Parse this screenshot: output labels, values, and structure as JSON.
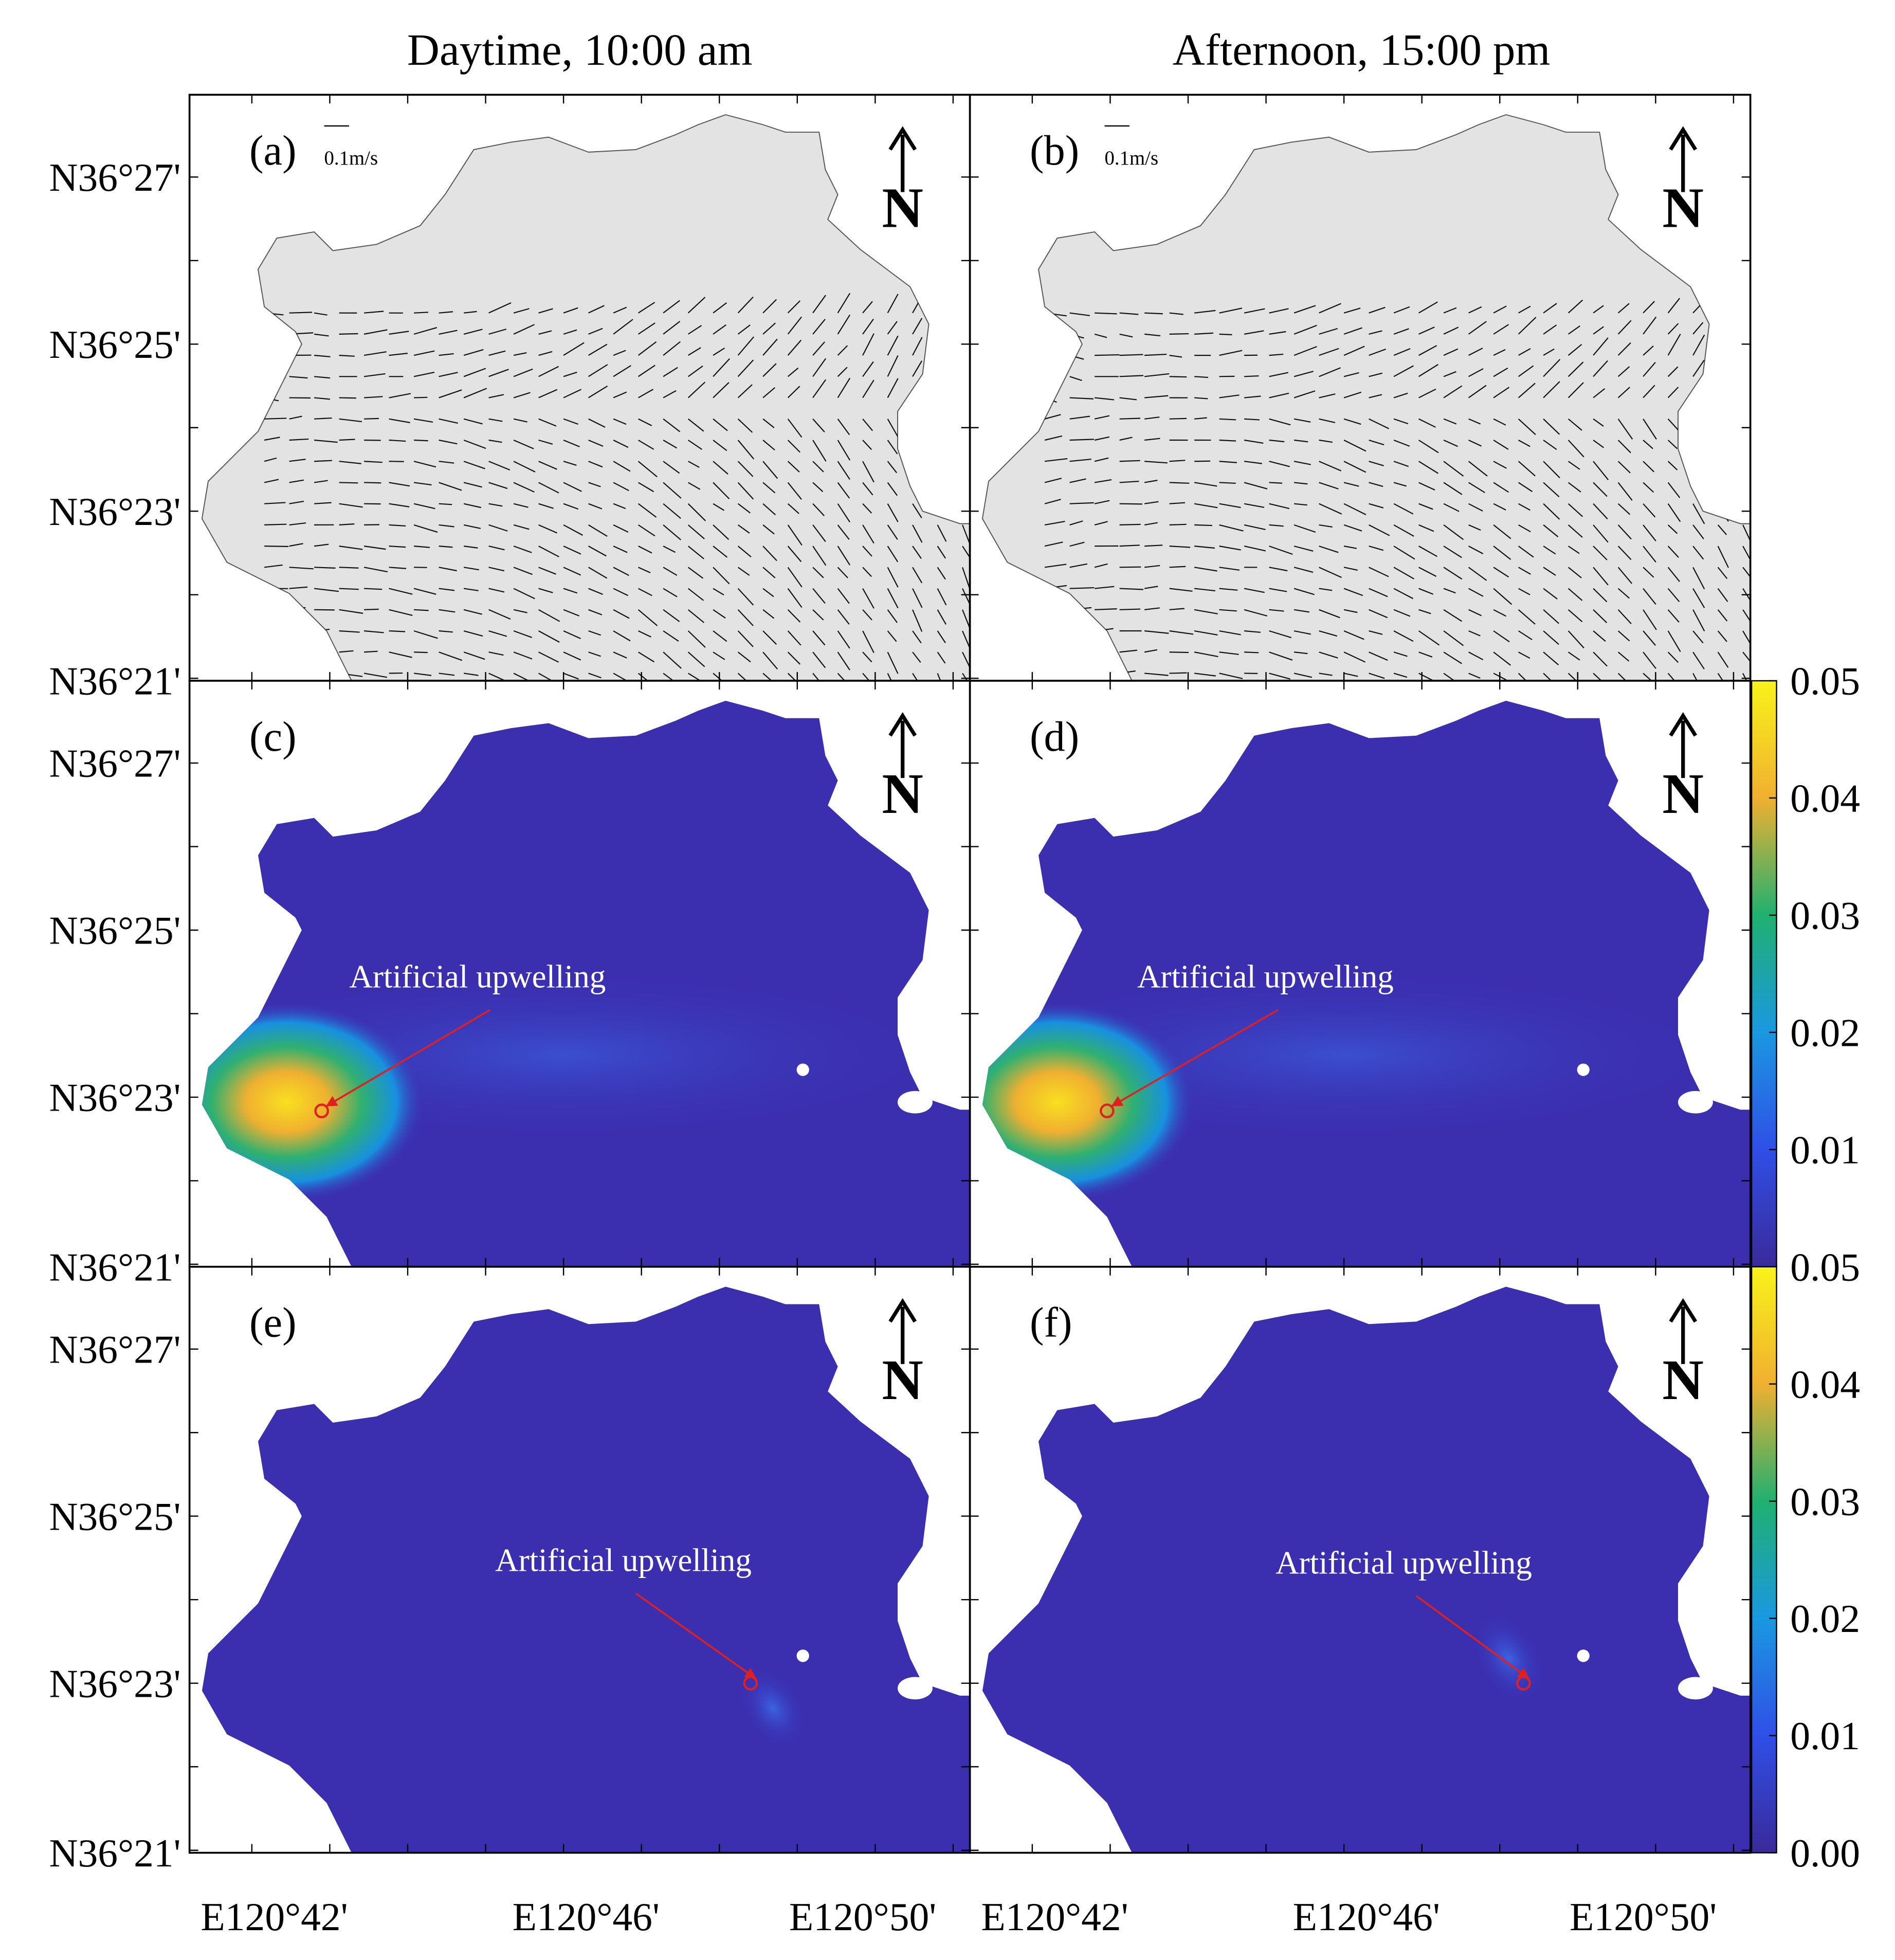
{
  "columns": [
    {
      "title": "Daytime, 10:00 am"
    },
    {
      "title": "Afternoon, 15:00 pm"
    }
  ],
  "panels": [
    {
      "label": "(a)",
      "scale_label": "0.1m/s"
    },
    {
      "label": "(b)",
      "scale_label": "0.1m/s"
    },
    {
      "label": "(c)",
      "annotation": "Artificial upwelling"
    },
    {
      "label": "(d)",
      "annotation": "Artificial upwelling"
    },
    {
      "label": "(e)",
      "annotation": "Artificial upwelling"
    },
    {
      "label": "(f)",
      "annotation": "Artificial upwelling"
    }
  ],
  "north_label": "N",
  "lat_ticks": [
    "N36°27'",
    "N36°25'",
    "N36°23'",
    "N36°21'"
  ],
  "lon_ticks": [
    "E120°42'",
    "E120°46'",
    "E120°50'"
  ],
  "colorbar": {
    "ylim": [
      0,
      0.05
    ],
    "ticks": [
      0.05,
      0.04,
      0.03,
      0.02,
      0.01,
      {
        "value": 0,
        "label": "0.00"
      }
    ]
  }
}
